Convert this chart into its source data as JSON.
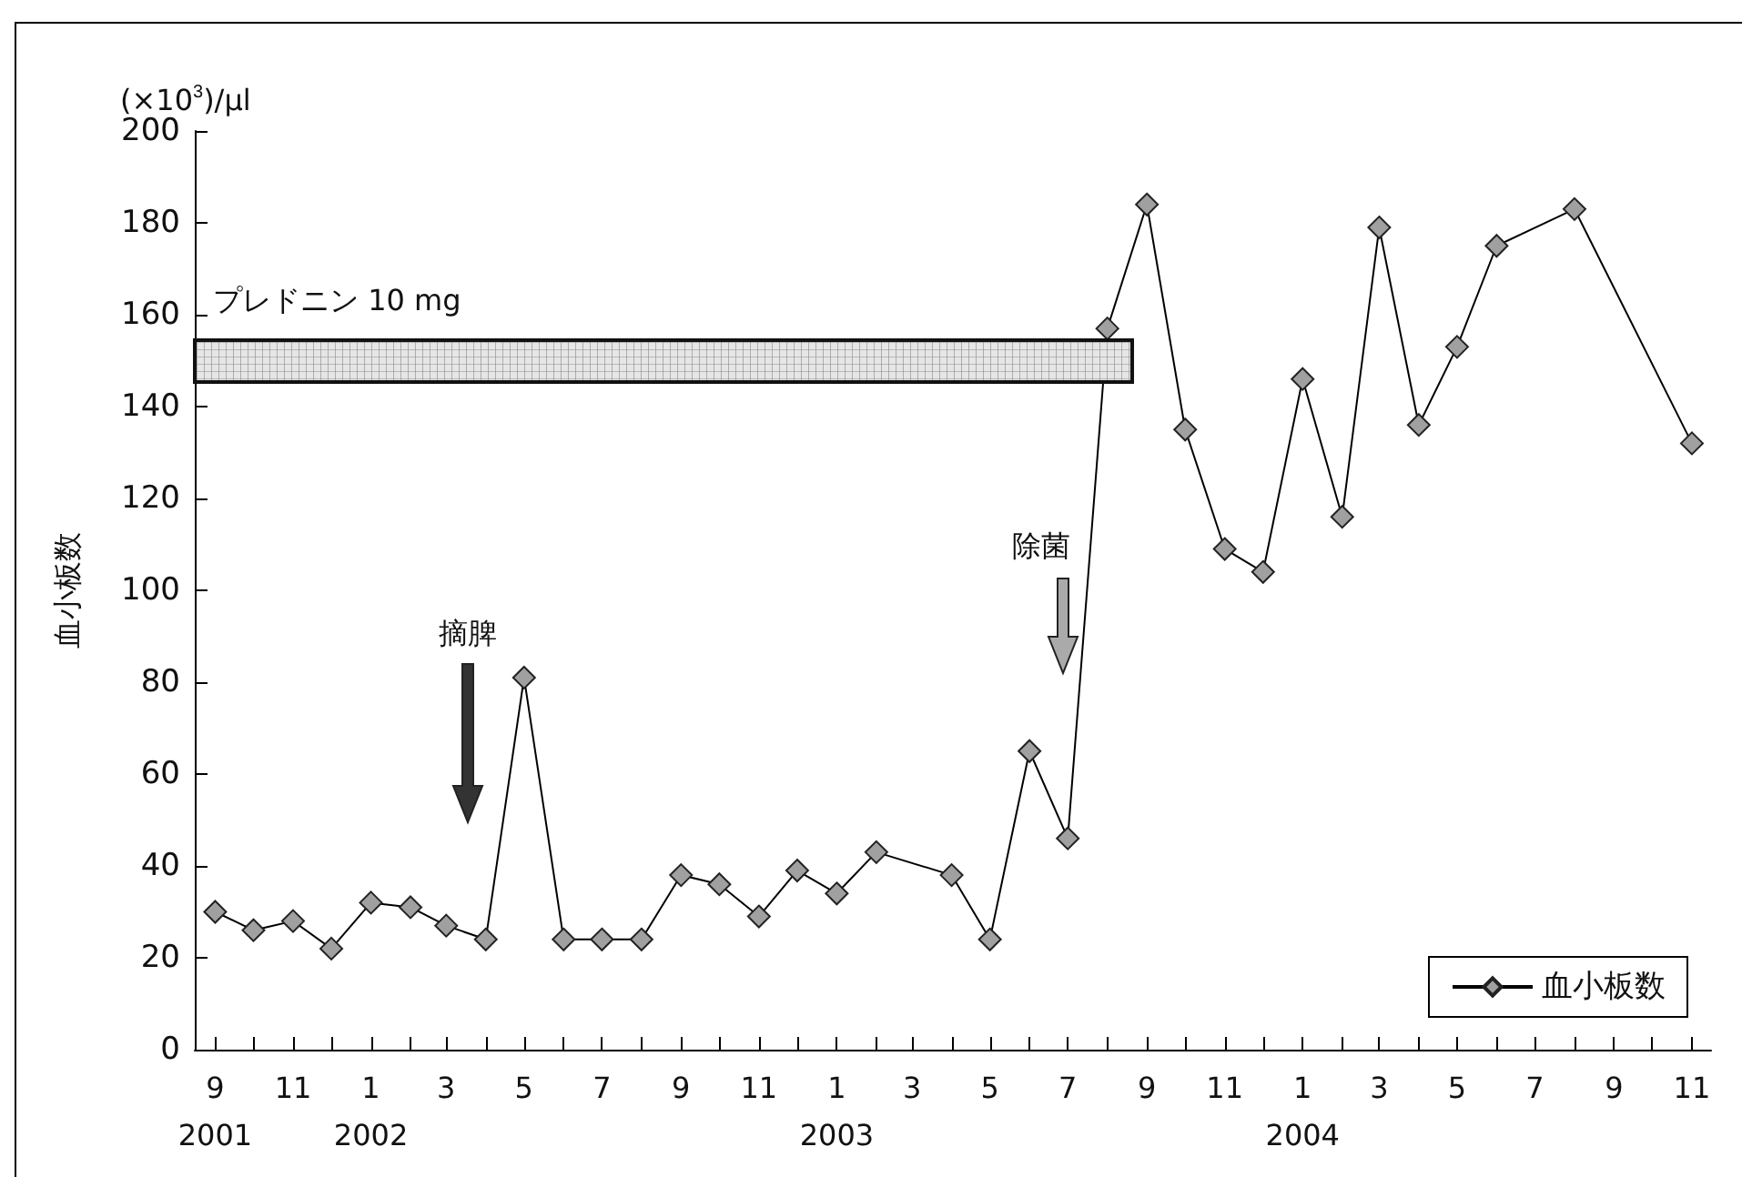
{
  "chart_data": {
    "type": "line",
    "ylabel": "血小板数",
    "x": [
      "2001-09",
      "2001-10",
      "2001-11",
      "2001-12",
      "2002-01",
      "2002-02",
      "2002-03",
      "2002-04",
      "2002-05",
      "2002-06",
      "2002-07",
      "2002-08",
      "2002-09",
      "2002-10",
      "2002-11",
      "2002-12",
      "2003-01",
      "2003-02",
      "2003-04",
      "2003-05",
      "2003-06",
      "2003-07",
      "2003-08",
      "2003-09",
      "2003-10",
      "2003-11",
      "2003-12",
      "2004-01",
      "2004-02",
      "2004-03",
      "2004-04",
      "2004-05",
      "2004-06",
      "2004-08",
      "2004-11"
    ],
    "series": [
      {
        "name": "血小板数",
        "color": "#a0a0a0",
        "values": [
          30,
          26,
          28,
          22,
          32,
          31,
          27,
          24,
          81,
          24,
          24,
          24,
          38,
          36,
          29,
          39,
          34,
          43,
          38,
          24,
          65,
          46,
          157,
          184,
          135,
          109,
          104,
          146,
          116,
          179,
          136,
          153,
          175,
          183,
          132
        ]
      }
    ],
    "xlim": [
      "2001-08-16",
      "2004-11-16"
    ],
    "xticks": [
      {
        "value": "2001-09",
        "label": "9\n2001"
      },
      {
        "value": "2001-10",
        "label": null
      },
      {
        "value": "2001-11",
        "label": "11"
      },
      {
        "value": "2001-12",
        "label": null
      },
      {
        "value": "2002-01",
        "label": "1\n2002"
      },
      {
        "value": "2002-02",
        "label": null
      },
      {
        "value": "2002-03",
        "label": "3"
      },
      {
        "value": "2002-04",
        "label": null
      },
      {
        "value": "2002-05",
        "label": "5"
      },
      {
        "value": "2002-06",
        "label": null
      },
      {
        "value": "2002-07",
        "label": "7"
      },
      {
        "value": "2002-08",
        "label": null
      },
      {
        "value": "2002-09",
        "label": "9"
      },
      {
        "value": "2002-10",
        "label": null
      },
      {
        "value": "2002-11",
        "label": "11"
      },
      {
        "value": "2002-12",
        "label": null
      },
      {
        "value": "2003-01",
        "label": "1\n2003"
      },
      {
        "value": "2003-02",
        "label": null
      },
      {
        "value": "2003-03",
        "label": "3"
      },
      {
        "value": "2003-04",
        "label": null
      },
      {
        "value": "2003-05",
        "label": "5"
      },
      {
        "value": "2003-06",
        "label": null
      },
      {
        "value": "2003-07",
        "label": "7"
      },
      {
        "value": "2003-08",
        "label": null
      },
      {
        "value": "2003-09",
        "label": "9"
      },
      {
        "value": "2003-10",
        "label": null
      },
      {
        "value": "2003-11",
        "label": "11"
      },
      {
        "value": "2003-12",
        "label": null
      },
      {
        "value": "2004-01",
        "label": "1\n2004"
      },
      {
        "value": "2004-02",
        "label": null
      },
      {
        "value": "2004-03",
        "label": "3"
      },
      {
        "value": "2004-04",
        "label": null
      },
      {
        "value": "2004-05",
        "label": "5"
      },
      {
        "value": "2004-06",
        "label": null
      },
      {
        "value": "2004-07",
        "label": "7"
      },
      {
        "value": "2004-08",
        "label": null
      },
      {
        "value": "2004-09",
        "label": "9"
      },
      {
        "value": "2004-10",
        "label": null
      },
      {
        "value": "2004-11",
        "label": "11"
      }
    ],
    "ylim": [
      0,
      200
    ],
    "yticks": [
      0,
      20,
      40,
      60,
      80,
      100,
      120,
      140,
      160,
      180,
      200
    ],
    "annotations": [
      "(×10$^{3}$)/μl",
      "プレドニン 10 mg",
      "摘脾",
      "除菌"
    ],
    "grid": false,
    "legend": "bottom right",
    "marker": "diamond",
    "line_style": "solid"
  }
}
